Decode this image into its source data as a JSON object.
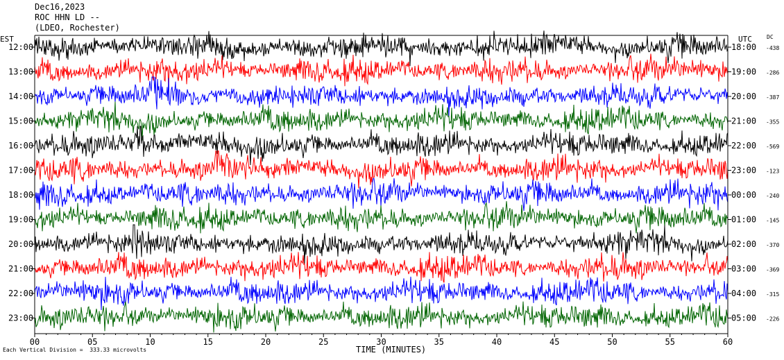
{
  "header": {
    "date": "Dec16,2023",
    "station": "ROC HHN LD --",
    "source": "(LDEO, Rochester)"
  },
  "labels": {
    "left_zone": "EST",
    "right_zone": "UTC",
    "dc": "DC",
    "x_axis": "TIME (MINUTES)",
    "footer": "Each Vertical Division =  333.33 microvolts"
  },
  "chart_data": {
    "type": "line",
    "title": "",
    "xlabel": "TIME (MINUTES)",
    "xlim": [
      0,
      60
    ],
    "x_ticks": [
      "00",
      "05",
      "10",
      "15",
      "20",
      "25",
      "30",
      "35",
      "40",
      "45",
      "50",
      "55",
      "60"
    ],
    "colors": [
      "#000000",
      "#ff0000",
      "#0000ff",
      "#006400"
    ],
    "rows": [
      {
        "est": "12:00",
        "utc": "18:00",
        "dc": "-438"
      },
      {
        "est": "13:00",
        "utc": "19:00",
        "dc": "-286"
      },
      {
        "est": "14:00",
        "utc": "20:00",
        "dc": "-387"
      },
      {
        "est": "15:00",
        "utc": "21:00",
        "dc": "-355"
      },
      {
        "est": "16:00",
        "utc": "22:00",
        "dc": "-569"
      },
      {
        "est": "17:00",
        "utc": "23:00",
        "dc": "-123"
      },
      {
        "est": "18:00",
        "utc": "00:00",
        "dc": "-240"
      },
      {
        "est": "19:00",
        "utc": "01:00",
        "dc": "-145"
      },
      {
        "est": "20:00",
        "utc": "02:00",
        "dc": "-370"
      },
      {
        "est": "21:00",
        "utc": "03:00",
        "dc": "-369"
      },
      {
        "est": "22:00",
        "utc": "04:00",
        "dc": "-315"
      },
      {
        "est": "23:00",
        "utc": "05:00",
        "dc": "-226"
      }
    ],
    "events": [
      {
        "row": 2,
        "minute": 10.2
      },
      {
        "row": 4,
        "minute": 9.0
      },
      {
        "row": 5,
        "minute": 15.8
      },
      {
        "row": 8,
        "minute": 8.5
      }
    ]
  }
}
